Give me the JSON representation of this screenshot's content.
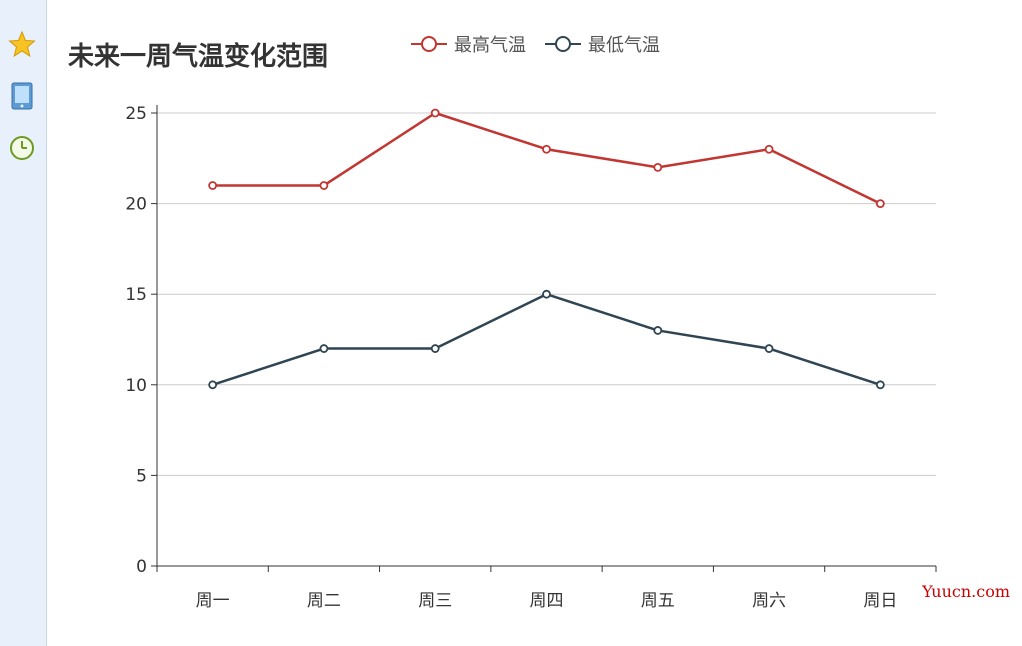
{
  "toolbar": {
    "icons": [
      "star-icon",
      "tablet-icon",
      "clock-icon"
    ]
  },
  "watermark": "Yuucn.com",
  "chart_data": {
    "type": "line",
    "title": "未来一周气温变化范围",
    "categories": [
      "周一",
      "周二",
      "周三",
      "周四",
      "周五",
      "周六",
      "周日"
    ],
    "series": [
      {
        "name": "最高气温",
        "values": [
          21,
          21,
          25,
          23,
          22,
          23,
          20
        ],
        "color": "#c23531"
      },
      {
        "name": "最低气温",
        "values": [
          10,
          12,
          12,
          15,
          13,
          12,
          10
        ],
        "color": "#2f4554"
      }
    ],
    "ylim": [
      0,
      25
    ],
    "yticks": [
      0,
      5,
      10,
      15,
      20,
      25
    ],
    "grid": true,
    "legend_position": "top"
  }
}
